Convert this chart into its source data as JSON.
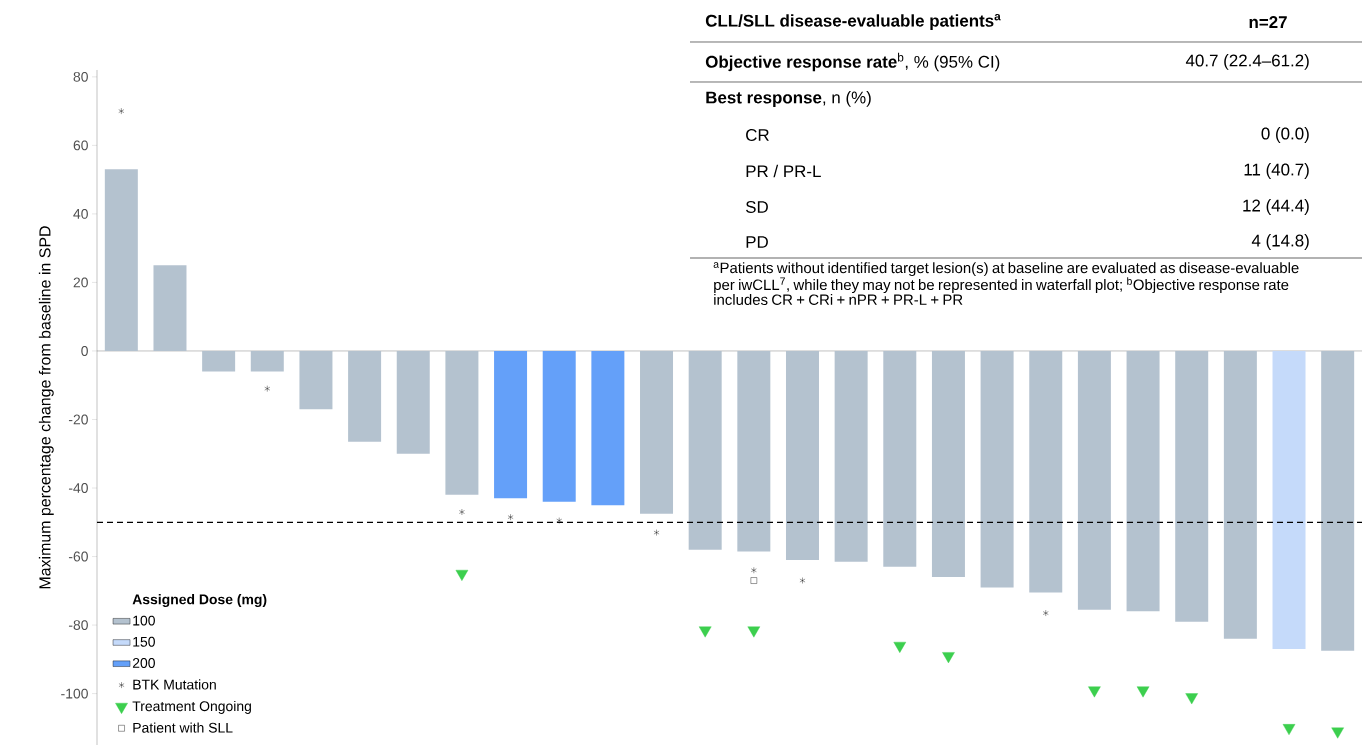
{
  "chart_data": {
    "type": "bar",
    "ylabel": "Maximum percentage change from baseline in SPD",
    "categories": [
      null,
      null,
      null,
      null,
      null,
      null,
      null,
      null,
      null,
      null,
      null,
      null,
      null,
      null,
      null,
      null,
      null,
      null,
      null,
      null,
      null,
      null,
      null,
      null,
      null,
      null
    ],
    "legend_title": "Assigned Dose (mg)",
    "series": [
      {
        "name": "100",
        "color": "#b4c2cf",
        "values": [
          53,
          25,
          -6,
          -6,
          -17,
          -26.5,
          -30,
          -42,
          null,
          null,
          null,
          -47.5,
          -58,
          -58.5,
          -61,
          -61.5,
          -63,
          -66,
          -69,
          -70.5,
          -75.5,
          -76,
          -79,
          -84,
          null,
          -87.5
        ]
      },
      {
        "name": "150",
        "color": "#c5dafa",
        "values": [
          null,
          null,
          null,
          null,
          null,
          null,
          null,
          null,
          null,
          null,
          null,
          null,
          null,
          null,
          null,
          null,
          null,
          null,
          null,
          null,
          null,
          null,
          null,
          null,
          -87,
          null
        ]
      },
      {
        "name": "200",
        "color": "#64a0f9",
        "values": [
          null,
          null,
          null,
          null,
          null,
          null,
          null,
          null,
          -43,
          -44,
          -45,
          null,
          null,
          null,
          null,
          null,
          null,
          null,
          null,
          null,
          null,
          null,
          null,
          null,
          null,
          null
        ]
      },
      {
        "name": "BTK Mutation",
        "type": "scatter",
        "marker": "cross",
        "color": "#000000",
        "values": [
          70,
          null,
          null,
          -11,
          null,
          null,
          null,
          -47,
          -48.5,
          -49.5,
          null,
          -53,
          null,
          -64,
          -67,
          null,
          null,
          null,
          null,
          -76.5,
          null,
          null,
          null,
          null,
          null,
          null
        ]
      },
      {
        "name": "Treatment Ongoing",
        "type": "scatter",
        "marker": "triangle",
        "color": "#3ccf4e",
        "values": [
          null,
          null,
          null,
          null,
          null,
          null,
          null,
          -65,
          null,
          null,
          null,
          null,
          -81.5,
          -81.5,
          null,
          null,
          -86,
          -89,
          null,
          null,
          -99,
          -99,
          -101,
          null,
          -110,
          -111
        ]
      },
      {
        "name": "Patient with SLL",
        "type": "scatter",
        "marker": "square",
        "color": "#000000",
        "values": [
          null,
          null,
          null,
          null,
          null,
          null,
          null,
          null,
          null,
          null,
          null,
          null,
          null,
          -67,
          null,
          null,
          null,
          null,
          null,
          null,
          null,
          null,
          null,
          null,
          null,
          null
        ]
      }
    ],
    "ylim": [
      -115,
      82
    ],
    "yticks": [
      -100,
      -80,
      -60,
      -40,
      -20,
      0,
      20,
      40,
      60,
      80
    ],
    "tick_labels": "y",
    "legend": "bottom left",
    "ref_lines": [
      {
        "axis": "y",
        "value": -50,
        "line_style": "dashed",
        "color": "#000000"
      }
    ],
    "annotations": [
      "CLL/SLL disease-evaluable patients$^{a}$",
      "n=27",
      "**Objective response rate**$^{b}$, % (95% CI)",
      "40.7 (22.4–61.2)",
      "**Best response**, n (%)",
      "CR",
      "0 (0.0)",
      "PR / PR-L",
      "11 (40.7)",
      "SD",
      "12 (44.4)",
      "PD",
      "4 (14.8)",
      "$^{a}$Patients without identified target lesion(s) at baseline are evaluated as disease-evaluable per iwCLL$^{7}$, while they may not be represented in waterfall plot; $^{b}$Objective response rate includes CR + CRi + nPR + PR-L + PR"
    ]
  }
}
